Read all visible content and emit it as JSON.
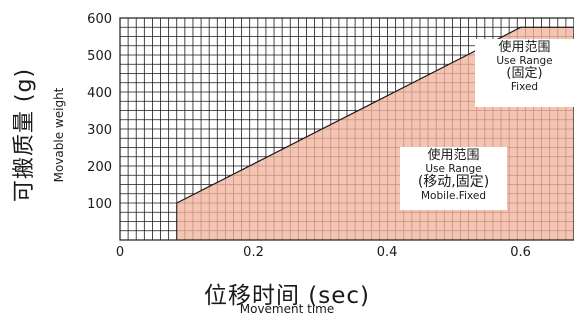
{
  "chart_data": {
    "type": "area",
    "xlabel": "位移时间 (sec)",
    "xlabel_en": "Movement time",
    "ylabel": "可搬质量 (g)",
    "ylabel_en": "Movable weight",
    "xlim": [
      0,
      0.68
    ],
    "ylim": [
      0,
      600
    ],
    "x_ticks": [
      "0",
      "0.2",
      "0.4",
      "0.6"
    ],
    "x_tick_values": [
      0,
      0.2,
      0.4,
      0.6
    ],
    "y_ticks": [
      "100",
      "200",
      "300",
      "400",
      "500",
      "600"
    ],
    "y_tick_values": [
      100,
      200,
      300,
      400,
      500,
      600
    ],
    "grid": true,
    "fill_color": "#f2b49c",
    "region_mobile_fixed": {
      "label_cn": "使用范围",
      "label_en": "Use Range",
      "mode_cn": "(移动,固定)",
      "mode_en": "Mobile.Fixed",
      "boundary": [
        {
          "x": 0.085,
          "y": 0
        },
        {
          "x": 0.085,
          "y": 100
        },
        {
          "x": 0.52,
          "y": 500
        },
        {
          "x": 0.68,
          "y": 500
        }
      ]
    },
    "region_fixed": {
      "label_cn": "使用范围",
      "label_en": "Use Range",
      "mode_cn": "(固定)",
      "mode_en": "Fixed",
      "boundary": [
        {
          "x": 0.52,
          "y": 500
        },
        {
          "x": 0.6,
          "y": 575
        },
        {
          "x": 0.68,
          "y": 575
        }
      ]
    }
  }
}
